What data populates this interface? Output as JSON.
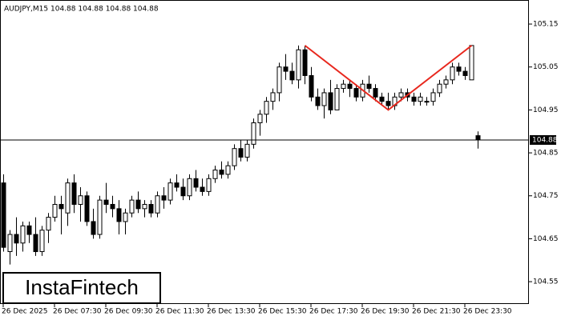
{
  "chart_data": {
    "type": "candlestick",
    "title": "AUDJPY,M15  104.88 104.88 104.88 104.88",
    "logo": "InstaFintech",
    "categories": [
      "26 Dec 2025",
      null,
      null,
      null,
      null,
      null,
      null,
      null,
      "26 Dec 07:30",
      null,
      null,
      null,
      null,
      null,
      null,
      null,
      "26 Dec 09:30",
      null,
      null,
      null,
      null,
      null,
      null,
      null,
      "26 Dec 11:30",
      null,
      null,
      null,
      null,
      null,
      null,
      null,
      "26 Dec 13:30",
      null,
      null,
      null,
      null,
      null,
      null,
      null,
      "26 Dec 15:30",
      null,
      null,
      null,
      null,
      null,
      null,
      null,
      "26 Dec 17:30",
      null,
      null,
      null,
      null,
      null,
      null,
      null,
      "26 Dec 19:30",
      null,
      null,
      null,
      null,
      null,
      null,
      null,
      "26 Dec 21:30",
      null,
      null,
      null,
      null,
      null,
      null,
      null,
      "26 Dec 23:30",
      null,
      null
    ],
    "ohlc": [
      [
        104.78,
        104.8,
        104.62,
        104.63
      ],
      [
        104.62,
        104.67,
        104.59,
        104.66
      ],
      [
        104.66,
        104.7,
        104.61,
        104.64
      ],
      [
        104.64,
        104.69,
        104.62,
        104.68
      ],
      [
        104.68,
        104.69,
        104.64,
        104.66
      ],
      [
        104.66,
        104.7,
        104.61,
        104.62
      ],
      [
        104.62,
        104.68,
        104.61,
        104.67
      ],
      [
        104.67,
        104.71,
        104.64,
        104.7
      ],
      [
        104.7,
        104.75,
        104.69,
        104.73
      ],
      [
        104.73,
        104.75,
        104.66,
        104.72
      ],
      [
        104.71,
        104.79,
        104.68,
        104.78
      ],
      [
        104.78,
        104.8,
        104.71,
        104.73
      ],
      [
        104.73,
        104.77,
        104.69,
        104.75
      ],
      [
        104.75,
        104.76,
        104.68,
        104.69
      ],
      [
        104.69,
        104.72,
        104.65,
        104.66
      ],
      [
        104.66,
        104.75,
        104.65,
        104.74
      ],
      [
        104.74,
        104.78,
        104.71,
        104.73
      ],
      [
        104.73,
        104.75,
        104.7,
        104.72
      ],
      [
        104.72,
        104.74,
        104.66,
        104.69
      ],
      [
        104.69,
        104.72,
        104.66,
        104.71
      ],
      [
        104.71,
        104.75,
        104.7,
        104.74
      ],
      [
        104.74,
        104.76,
        104.71,
        104.72
      ],
      [
        104.72,
        104.74,
        104.7,
        104.73
      ],
      [
        104.73,
        104.74,
        104.7,
        104.71
      ],
      [
        104.71,
        104.76,
        104.7,
        104.75
      ],
      [
        104.75,
        104.77,
        104.72,
        104.74
      ],
      [
        104.74,
        104.79,
        104.73,
        104.78
      ],
      [
        104.78,
        104.8,
        104.76,
        104.77
      ],
      [
        104.77,
        104.79,
        104.74,
        104.75
      ],
      [
        104.75,
        104.8,
        104.74,
        104.79
      ],
      [
        104.79,
        104.81,
        104.76,
        104.77
      ],
      [
        104.77,
        104.79,
        104.75,
        104.76
      ],
      [
        104.76,
        104.8,
        104.75,
        104.79
      ],
      [
        104.79,
        104.82,
        104.78,
        104.81
      ],
      [
        104.81,
        104.83,
        104.79,
        104.8
      ],
      [
        104.8,
        104.83,
        104.79,
        104.82
      ],
      [
        104.82,
        104.87,
        104.81,
        104.86
      ],
      [
        104.86,
        104.88,
        104.83,
        104.84
      ],
      [
        104.84,
        104.88,
        104.83,
        104.87
      ],
      [
        104.87,
        104.93,
        104.86,
        104.92
      ],
      [
        104.92,
        104.95,
        104.89,
        104.94
      ],
      [
        104.94,
        104.98,
        104.92,
        104.97
      ],
      [
        104.97,
        105.0,
        104.95,
        104.99
      ],
      [
        104.99,
        105.06,
        104.97,
        105.05
      ],
      [
        105.05,
        105.08,
        105.02,
        105.04
      ],
      [
        105.04,
        105.06,
        105.01,
        105.02
      ],
      [
        105.02,
        105.1,
        105.0,
        105.09
      ],
      [
        105.09,
        105.1,
        105.01,
        105.03
      ],
      [
        105.03,
        105.05,
        104.97,
        104.98
      ],
      [
        104.98,
        105.0,
        104.95,
        104.96
      ],
      [
        104.96,
        105.0,
        104.93,
        104.99
      ],
      [
        104.99,
        105.02,
        104.94,
        104.95
      ],
      [
        104.95,
        105.01,
        104.95,
        105.0
      ],
      [
        105.0,
        105.02,
        104.99,
        105.01
      ],
      [
        105.01,
        105.02,
        104.98,
        105.0
      ],
      [
        105.0,
        105.01,
        104.97,
        104.98
      ],
      [
        104.98,
        105.02,
        104.97,
        105.01
      ],
      [
        105.01,
        105.03,
        104.99,
        105.0
      ],
      [
        105.0,
        105.01,
        104.97,
        104.98
      ],
      [
        104.98,
        104.99,
        104.96,
        104.97
      ],
      [
        104.97,
        104.99,
        104.95,
        104.96
      ],
      [
        104.96,
        104.99,
        104.95,
        104.98
      ],
      [
        104.98,
        105.0,
        104.97,
        104.99
      ],
      [
        104.99,
        105.0,
        104.97,
        104.98
      ],
      [
        104.98,
        104.99,
        104.96,
        104.97
      ],
      [
        104.97,
        104.99,
        104.96,
        104.98
      ],
      [
        104.97,
        104.98,
        104.96,
        104.97
      ],
      [
        104.97,
        105.0,
        104.96,
        104.99
      ],
      [
        104.99,
        105.02,
        104.98,
        105.01
      ],
      [
        105.01,
        105.03,
        105.0,
        105.02
      ],
      [
        105.02,
        105.06,
        105.01,
        105.05
      ],
      [
        105.05,
        105.06,
        105.03,
        105.04
      ],
      [
        105.04,
        105.05,
        105.02,
        105.03
      ],
      [
        105.02,
        105.1,
        105.02,
        105.1
      ],
      [
        104.89,
        104.9,
        104.86,
        104.88
      ]
    ],
    "ylim": [
      104.498,
      105.206
    ],
    "yticks": [
      104.55,
      104.65,
      104.75,
      104.85,
      104.95,
      105.05,
      105.15
    ],
    "current_price": 104.88,
    "pattern": {
      "color": "#e8281e",
      "points": [
        [
          47,
          105.1
        ],
        [
          60,
          104.95
        ],
        [
          73,
          105.1
        ]
      ]
    }
  }
}
